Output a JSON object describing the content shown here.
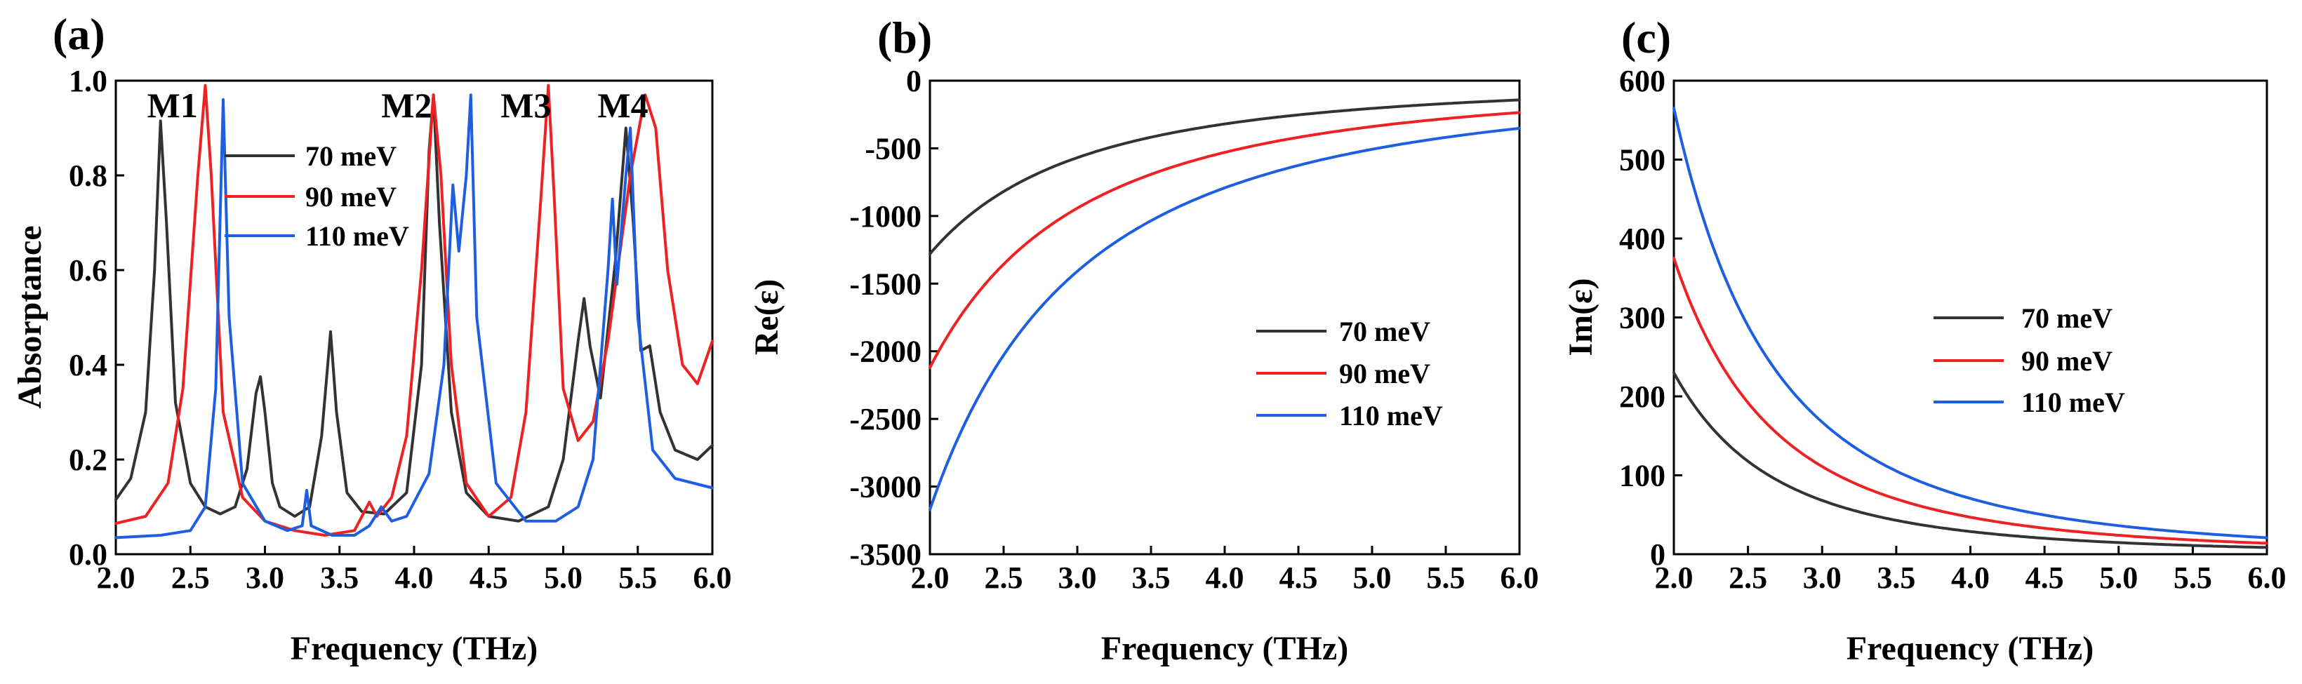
{
  "chart_data": [
    {
      "id": "a",
      "panel_label": "(a)",
      "type": "line",
      "xlabel": "Frequency (THz)",
      "ylabel": "Absorptance",
      "xlim": [
        2.0,
        6.0
      ],
      "ylim": [
        0.0,
        1.0
      ],
      "xticks": [
        "2.0",
        "2.5",
        "3.0",
        "3.5",
        "4.0",
        "4.5",
        "5.0",
        "5.5",
        "6.0"
      ],
      "yticks": [
        "0.0",
        "0.2",
        "0.4",
        "0.6",
        "0.8",
        "1.0"
      ],
      "legend_position": "upper-middle",
      "annotations": [
        {
          "text": "M1",
          "x": 2.38,
          "y": 0.95
        },
        {
          "text": "M2",
          "x": 3.95,
          "y": 0.95
        },
        {
          "text": "M3",
          "x": 4.75,
          "y": 0.95
        },
        {
          "text": "M4",
          "x": 5.4,
          "y": 0.95
        }
      ],
      "series": [
        {
          "name": "70 meV",
          "color": "#333333",
          "points": [
            [
              2.0,
              0.115
            ],
            [
              2.1,
              0.16
            ],
            [
              2.2,
              0.3
            ],
            [
              2.26,
              0.6
            ],
            [
              2.3,
              0.915
            ],
            [
              2.34,
              0.7
            ],
            [
              2.4,
              0.32
            ],
            [
              2.5,
              0.15
            ],
            [
              2.6,
              0.1
            ],
            [
              2.7,
              0.085
            ],
            [
              2.8,
              0.1
            ],
            [
              2.88,
              0.18
            ],
            [
              2.94,
              0.34
            ],
            [
              2.97,
              0.375
            ],
            [
              3.0,
              0.3
            ],
            [
              3.05,
              0.15
            ],
            [
              3.1,
              0.1
            ],
            [
              3.2,
              0.08
            ],
            [
              3.3,
              0.1
            ],
            [
              3.38,
              0.25
            ],
            [
              3.44,
              0.47
            ],
            [
              3.48,
              0.3
            ],
            [
              3.55,
              0.13
            ],
            [
              3.65,
              0.09
            ],
            [
              3.8,
              0.085
            ],
            [
              3.95,
              0.13
            ],
            [
              4.05,
              0.4
            ],
            [
              4.1,
              0.85
            ],
            [
              4.13,
              0.97
            ],
            [
              4.17,
              0.7
            ],
            [
              4.25,
              0.3
            ],
            [
              4.35,
              0.13
            ],
            [
              4.5,
              0.08
            ],
            [
              4.7,
              0.07
            ],
            [
              4.9,
              0.1
            ],
            [
              5.0,
              0.2
            ],
            [
              5.1,
              0.45
            ],
            [
              5.14,
              0.54
            ],
            [
              5.18,
              0.44
            ],
            [
              5.25,
              0.33
            ],
            [
              5.35,
              0.62
            ],
            [
              5.42,
              0.9
            ],
            [
              5.47,
              0.7
            ],
            [
              5.52,
              0.43
            ],
            [
              5.58,
              0.44
            ],
            [
              5.65,
              0.3
            ],
            [
              5.75,
              0.22
            ],
            [
              5.9,
              0.2
            ],
            [
              6.0,
              0.23
            ]
          ]
        },
        {
          "name": "90 meV",
          "color": "#ee2222",
          "points": [
            [
              2.0,
              0.065
            ],
            [
              2.2,
              0.08
            ],
            [
              2.35,
              0.15
            ],
            [
              2.45,
              0.35
            ],
            [
              2.55,
              0.8
            ],
            [
              2.6,
              0.99
            ],
            [
              2.64,
              0.8
            ],
            [
              2.72,
              0.3
            ],
            [
              2.85,
              0.12
            ],
            [
              3.0,
              0.07
            ],
            [
              3.2,
              0.05
            ],
            [
              3.4,
              0.04
            ],
            [
              3.6,
              0.05
            ],
            [
              3.7,
              0.11
            ],
            [
              3.75,
              0.08
            ],
            [
              3.85,
              0.12
            ],
            [
              3.95,
              0.25
            ],
            [
              4.05,
              0.6
            ],
            [
              4.13,
              0.97
            ],
            [
              4.18,
              0.8
            ],
            [
              4.25,
              0.4
            ],
            [
              4.35,
              0.15
            ],
            [
              4.5,
              0.08
            ],
            [
              4.65,
              0.12
            ],
            [
              4.75,
              0.3
            ],
            [
              4.85,
              0.75
            ],
            [
              4.9,
              0.99
            ],
            [
              4.94,
              0.75
            ],
            [
              5.0,
              0.35
            ],
            [
              5.1,
              0.24
            ],
            [
              5.2,
              0.28
            ],
            [
              5.3,
              0.45
            ],
            [
              5.45,
              0.8
            ],
            [
              5.55,
              0.97
            ],
            [
              5.62,
              0.9
            ],
            [
              5.7,
              0.6
            ],
            [
              5.8,
              0.4
            ],
            [
              5.9,
              0.36
            ],
            [
              6.0,
              0.45
            ]
          ]
        },
        {
          "name": "110 meV",
          "color": "#1e5ee0",
          "points": [
            [
              2.0,
              0.035
            ],
            [
              2.3,
              0.04
            ],
            [
              2.5,
              0.05
            ],
            [
              2.6,
              0.1
            ],
            [
              2.67,
              0.35
            ],
            [
              2.72,
              0.96
            ],
            [
              2.76,
              0.5
            ],
            [
              2.85,
              0.15
            ],
            [
              3.0,
              0.07
            ],
            [
              3.15,
              0.05
            ],
            [
              3.25,
              0.06
            ],
            [
              3.28,
              0.135
            ],
            [
              3.31,
              0.06
            ],
            [
              3.45,
              0.04
            ],
            [
              3.6,
              0.04
            ],
            [
              3.7,
              0.06
            ],
            [
              3.78,
              0.1
            ],
            [
              3.85,
              0.07
            ],
            [
              3.95,
              0.08
            ],
            [
              4.1,
              0.17
            ],
            [
              4.2,
              0.4
            ],
            [
              4.26,
              0.78
            ],
            [
              4.3,
              0.64
            ],
            [
              4.35,
              0.8
            ],
            [
              4.38,
              0.97
            ],
            [
              4.42,
              0.5
            ],
            [
              4.55,
              0.15
            ],
            [
              4.75,
              0.07
            ],
            [
              4.95,
              0.07
            ],
            [
              5.1,
              0.1
            ],
            [
              5.2,
              0.2
            ],
            [
              5.3,
              0.6
            ],
            [
              5.33,
              0.75
            ],
            [
              5.36,
              0.57
            ],
            [
              5.42,
              0.8
            ],
            [
              5.45,
              0.9
            ],
            [
              5.5,
              0.5
            ],
            [
              5.6,
              0.22
            ],
            [
              5.75,
              0.16
            ],
            [
              6.0,
              0.14
            ]
          ]
        }
      ]
    },
    {
      "id": "b",
      "panel_label": "(b)",
      "type": "line",
      "xlabel": "Frequency (THz)",
      "ylabel": "Re(ε)",
      "xlim": [
        2.0,
        6.0
      ],
      "ylim": [
        -3500,
        0
      ],
      "xticks": [
        "2.0",
        "2.5",
        "3.0",
        "3.5",
        "4.0",
        "4.5",
        "5.0",
        "5.5",
        "6.0"
      ],
      "yticks": [
        "0",
        "-500",
        "-1000",
        "-1500",
        "-2000",
        "-2500",
        "-3000",
        "-3500"
      ],
      "legend_position": "center-right",
      "series": [
        {
          "name": "70 meV",
          "color": "#333333",
          "model": "inverse_square",
          "value_at_2THz": -1280
        },
        {
          "name": "90 meV",
          "color": "#ee2222",
          "model": "inverse_square",
          "value_at_2THz": -2120
        },
        {
          "name": "110 meV",
          "color": "#1e5ee0",
          "model": "inverse_square",
          "value_at_2THz": -3170
        }
      ]
    },
    {
      "id": "c",
      "panel_label": "(c)",
      "type": "line",
      "xlabel": "Frequency (THz)",
      "ylabel": "Im(ε)",
      "xlim": [
        2.0,
        6.0
      ],
      "ylim": [
        0,
        600
      ],
      "xticks": [
        "2.0",
        "2.5",
        "3.0",
        "3.5",
        "4.0",
        "4.5",
        "5.0",
        "5.5",
        "6.0"
      ],
      "yticks": [
        "0",
        "100",
        "200",
        "300",
        "400",
        "500",
        "600"
      ],
      "legend_position": "center-right",
      "series": [
        {
          "name": "70 meV",
          "color": "#333333",
          "model": "inverse_cube",
          "value_at_2THz": 230
        },
        {
          "name": "90 meV",
          "color": "#ee2222",
          "model": "inverse_cube",
          "value_at_2THz": 375
        },
        {
          "name": "110 meV",
          "color": "#1e5ee0",
          "model": "inverse_cube",
          "value_at_2THz": 565
        }
      ]
    }
  ]
}
